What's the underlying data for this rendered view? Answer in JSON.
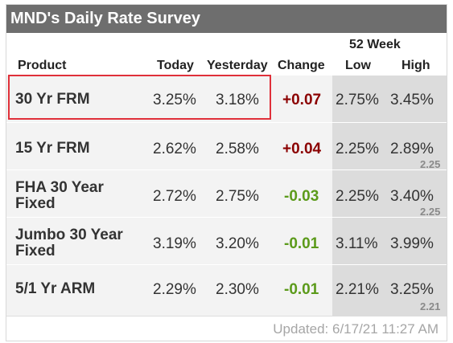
{
  "widget": {
    "title": "MND's Daily Rate Survey",
    "header": {
      "product": "Product",
      "today": "Today",
      "yesterday": "Yesterday",
      "change": "Change",
      "week_group": "52 Week",
      "low": "Low",
      "high": "High"
    },
    "rows": [
      {
        "product_line1": "30 Yr FRM",
        "product_line2": "",
        "today": "3.25%",
        "yesterday": "3.18%",
        "change": "+0.07",
        "change_dir": "up",
        "low": "2.75%",
        "high": "3.45%",
        "ghost": ""
      },
      {
        "product_line1": "15 Yr FRM",
        "product_line2": "",
        "today": "2.62%",
        "yesterday": "2.58%",
        "change": "+0.04",
        "change_dir": "up",
        "low": "2.25%",
        "high": "2.89%",
        "ghost": "2.25"
      },
      {
        "product_line1": "FHA 30 Year",
        "product_line2": "Fixed",
        "today": "2.72%",
        "yesterday": "2.75%",
        "change": "-0.03",
        "change_dir": "down",
        "low": "2.25%",
        "high": "3.40%",
        "ghost": "2.25"
      },
      {
        "product_line1": "Jumbo 30 Year",
        "product_line2": "Fixed",
        "today": "3.19%",
        "yesterday": "3.20%",
        "change": "-0.01",
        "change_dir": "down",
        "low": "3.11%",
        "high": "3.99%",
        "ghost": ""
      },
      {
        "product_line1": "5/1 Yr ARM",
        "product_line2": "",
        "today": "2.29%",
        "yesterday": "2.30%",
        "change": "-0.01",
        "change_dir": "down",
        "low": "2.21%",
        "high": "3.25%",
        "ghost": "2.21"
      }
    ],
    "updated": "Updated: 6/17/21 11:27 AM"
  },
  "colors": {
    "title_bar": "#6e6e6e",
    "change_up": "#8b0000",
    "change_down": "#5b9a1a",
    "highlight_border": "#e0303a",
    "week_column_bg": "#dcdcdc"
  }
}
